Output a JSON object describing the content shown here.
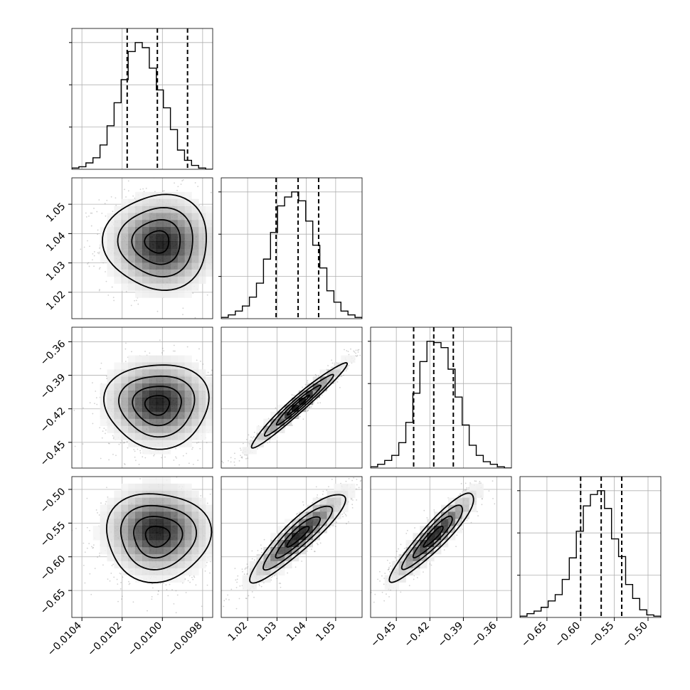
{
  "chart_data": {
    "type": "corner",
    "panels_per_side": 4,
    "grid": true,
    "colors": {
      "line": "#000000",
      "grid": "#b0b0b0",
      "scatter": "#7a7a7a",
      "density_dark": "#000000",
      "density_light": "#ffffff"
    },
    "parameters": [
      {
        "range": [
          -0.01045,
          -0.00975
        ],
        "ticks": [
          -0.0104,
          -0.0102,
          -0.01,
          -0.0098
        ],
        "tick_labels": [
          "−0.0104",
          "−0.0102",
          "−0.0100",
          "−0.0098"
        ],
        "quantiles": [
          -0.010175,
          -0.010025,
          -0.009875
        ],
        "histogram": {
          "bin_edges": [
            -0.01045,
            -0.010415,
            -0.01038,
            -0.010345,
            -0.01031,
            -0.010275,
            -0.01024,
            -0.010205,
            -0.01017,
            -0.010135,
            -0.0101,
            -0.010065,
            -0.01003,
            -0.009995,
            -0.00996,
            -0.009925,
            -0.00989,
            -0.009855,
            -0.00982,
            -0.009785,
            -0.00975
          ],
          "counts": [
            1,
            2,
            5,
            9,
            19,
            34,
            52,
            70,
            92,
            99,
            95,
            79,
            62,
            48,
            31,
            15,
            7,
            3,
            1,
            0
          ]
        }
      },
      {
        "range": [
          1.011,
          1.059
        ],
        "ticks": [
          1.02,
          1.03,
          1.04,
          1.05
        ],
        "tick_labels": [
          "1.02",
          "1.03",
          "1.04",
          "1.05"
        ],
        "quantiles": [
          1.0297,
          1.0372,
          1.0442
        ],
        "histogram": {
          "bin_edges": [
            1.011,
            1.0134,
            1.0158,
            1.0182,
            1.0206,
            1.023,
            1.0254,
            1.0278,
            1.0302,
            1.0326,
            1.035,
            1.0374,
            1.0398,
            1.0422,
            1.0446,
            1.047,
            1.0494,
            1.0518,
            1.0542,
            1.0566,
            1.059
          ],
          "counts": [
            1,
            3,
            6,
            10,
            17,
            28,
            47,
            68,
            89,
            96,
            100,
            93,
            77,
            58,
            40,
            22,
            13,
            6,
            3,
            1
          ]
        }
      },
      {
        "range": [
          -0.473,
          -0.347
        ],
        "ticks": [
          -0.45,
          -0.42,
          -0.39,
          -0.36
        ],
        "tick_labels": [
          "−0.45",
          "−0.42",
          "−0.39",
          "−0.36"
        ],
        "quantiles": [
          -0.4345,
          -0.4165,
          -0.399
        ],
        "histogram": {
          "bin_edges": [
            -0.473,
            -0.4667,
            -0.4604,
            -0.4541,
            -0.4478,
            -0.4415,
            -0.4352,
            -0.4289,
            -0.4226,
            -0.4163,
            -0.41,
            -0.4037,
            -0.3974,
            -0.3911,
            -0.3848,
            -0.3785,
            -0.3722,
            -0.3659,
            -0.3596,
            -0.3533,
            -0.347
          ],
          "counts": [
            1,
            3,
            6,
            10,
            20,
            36,
            59,
            84,
            100,
            99,
            95,
            78,
            56,
            34,
            18,
            10,
            5,
            3,
            1,
            0
          ]
        }
      },
      {
        "range": [
          -0.69,
          -0.481
        ],
        "ticks": [
          -0.65,
          -0.6,
          -0.55,
          -0.5
        ],
        "tick_labels": [
          "−0.65",
          "−0.60",
          "−0.55",
          "−0.50"
        ],
        "quantiles": [
          -0.6,
          -0.5695,
          -0.539
        ],
        "histogram": {
          "bin_edges": [
            -0.69,
            -0.67955,
            -0.6691,
            -0.65865,
            -0.6482,
            -0.63775,
            -0.6273,
            -0.61685,
            -0.6064,
            -0.59595,
            -0.5855,
            -0.57505,
            -0.5646,
            -0.55415,
            -0.5437,
            -0.53325,
            -0.5228,
            -0.51235,
            -0.5019,
            -0.49145,
            -0.481
          ],
          "counts": [
            1,
            3,
            5,
            8,
            13,
            18,
            30,
            47,
            68,
            88,
            97,
            100,
            86,
            62,
            48,
            26,
            15,
            6,
            2,
            1
          ]
        }
      }
    ],
    "pairs": [
      {
        "x": 0,
        "y": 1,
        "mean": [
          -0.010025,
          1.0372
        ],
        "sd": [
          0.00012,
          0.0075
        ],
        "rho": 0.0,
        "peak_offset": [
          0.03,
          0.02
        ]
      },
      {
        "x": 0,
        "y": 2,
        "mean": [
          -0.010025,
          -0.4165
        ],
        "sd": [
          0.00012,
          0.0175
        ],
        "rho": 0.0,
        "peak_offset": [
          0.01,
          -0.02
        ]
      },
      {
        "x": 1,
        "y": 2,
        "mean": [
          1.0372,
          -0.4165
        ],
        "sd": [
          0.0075,
          0.0175
        ],
        "rho": 0.97,
        "peak_offset": [
          0.0,
          0.0
        ]
      },
      {
        "x": 0,
        "y": 3,
        "mean": [
          -0.010025,
          -0.5695
        ],
        "sd": [
          0.00012,
          0.0305
        ],
        "rho": 0.0,
        "peak_offset": [
          0.0,
          -0.04
        ]
      },
      {
        "x": 1,
        "y": 3,
        "mean": [
          1.0372,
          -0.5695
        ],
        "sd": [
          0.0075,
          0.0305
        ],
        "rho": 0.9,
        "peak_offset": [
          0.0,
          0.0
        ]
      },
      {
        "x": 2,
        "y": 3,
        "mean": [
          -0.4165,
          -0.5695
        ],
        "sd": [
          0.0175,
          0.0305
        ],
        "rho": 0.92,
        "peak_offset": [
          0.0,
          0.0
        ]
      }
    ]
  }
}
